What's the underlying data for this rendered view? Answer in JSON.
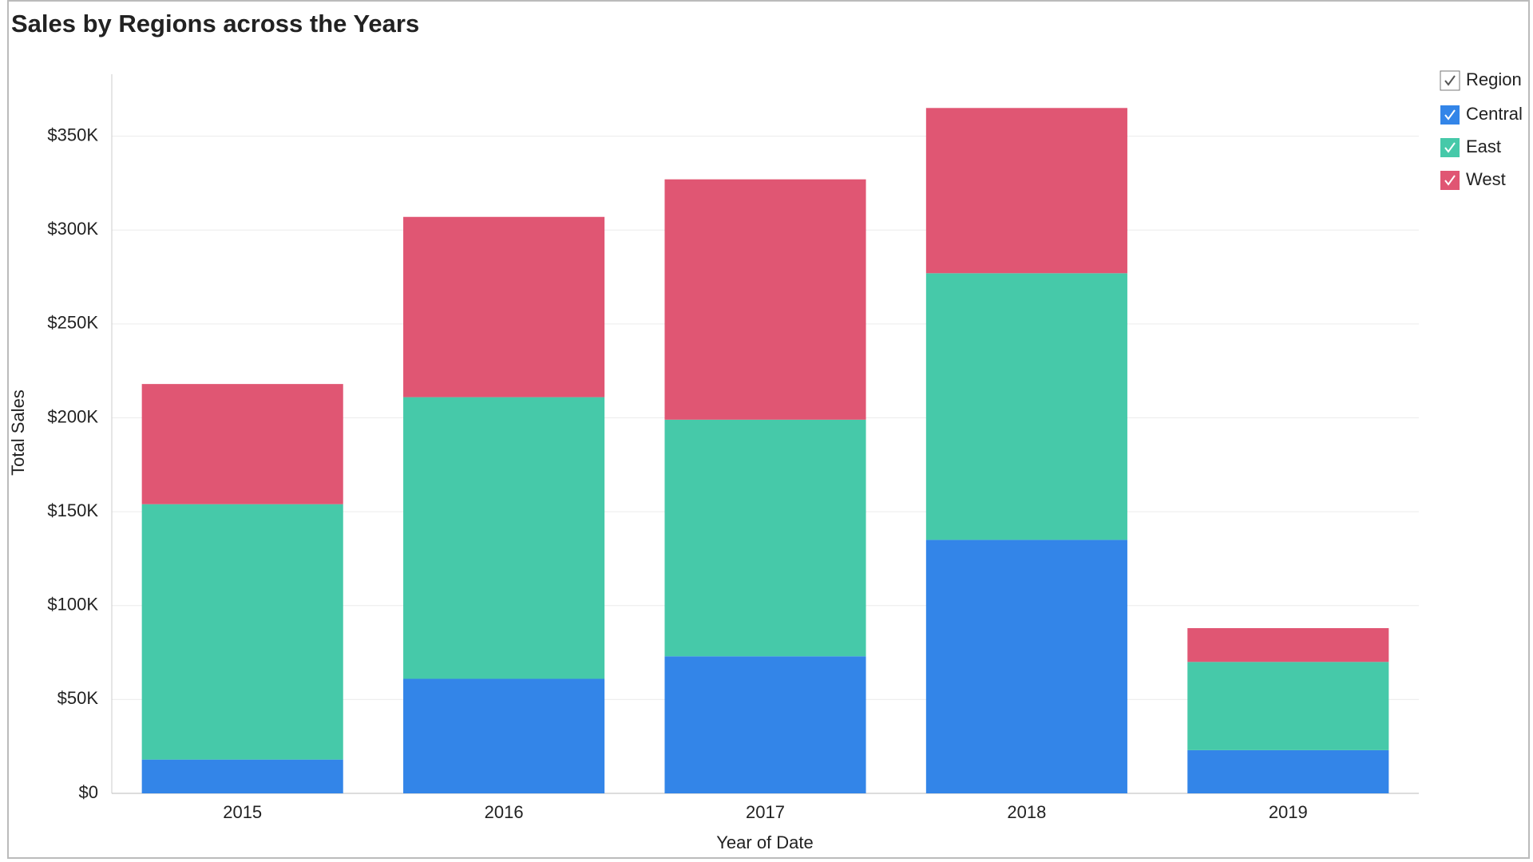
{
  "chart_data": {
    "type": "stacked_bar",
    "title": "Sales by Regions across the Years",
    "x_label": "Year of Date",
    "y_label": "Total Sales",
    "categories": [
      "2015",
      "2016",
      "2017",
      "2018",
      "2019"
    ],
    "series": [
      {
        "name": "Central",
        "color": "#3385e8",
        "values": [
          18000,
          61000,
          73000,
          135000,
          23000
        ]
      },
      {
        "name": "East",
        "color": "#46c9a9",
        "values": [
          136000,
          150000,
          126000,
          142000,
          47000
        ]
      },
      {
        "name": "West",
        "color": "#e05673",
        "values": [
          64000,
          96000,
          128000,
          88000,
          18000
        ]
      }
    ],
    "legend_title": "Region",
    "ylim": [
      0,
      380000
    ],
    "yticks": [
      {
        "value": 0,
        "label": "$0"
      },
      {
        "value": 50000,
        "label": "$50K"
      },
      {
        "value": 100000,
        "label": "$100K"
      },
      {
        "value": 150000,
        "label": "$150K"
      },
      {
        "value": 200000,
        "label": "$200K"
      },
      {
        "value": 250000,
        "label": "$250K"
      },
      {
        "value": 300000,
        "label": "$300K"
      },
      {
        "value": 350000,
        "label": "$350K"
      }
    ],
    "grid": true
  }
}
